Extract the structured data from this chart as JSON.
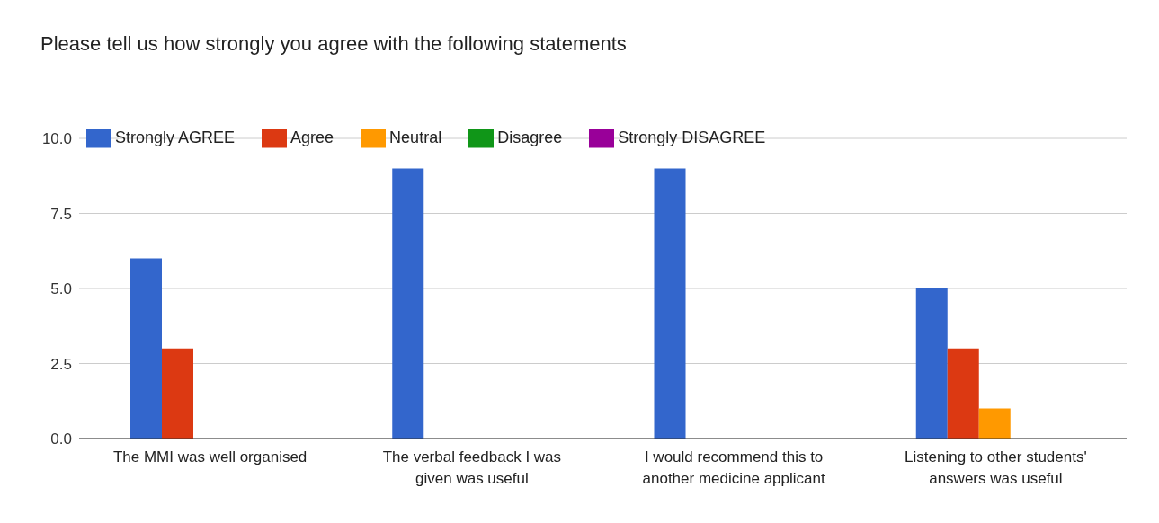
{
  "chart_data": {
    "type": "bar",
    "title": "Please tell us how strongly you agree with  the following statements",
    "categories": [
      "The MMI was well organised",
      "The verbal feedback I was given was useful",
      "I would recommend this to another medicine applicant",
      "Listening to other students' answers was useful"
    ],
    "series": [
      {
        "name": "Strongly AGREE",
        "color": "#3366cc",
        "values": [
          6,
          9,
          9,
          5
        ]
      },
      {
        "name": "Agree",
        "color": "#dc3912",
        "values": [
          3,
          0,
          0,
          3
        ]
      },
      {
        "name": "Neutral",
        "color": "#ff9900",
        "values": [
          0,
          0,
          0,
          1
        ]
      },
      {
        "name": "Disagree",
        "color": "#109618",
        "values": [
          0,
          0,
          0,
          0
        ]
      },
      {
        "name": "Strongly DISAGREE",
        "color": "#990099",
        "values": [
          0,
          0,
          0,
          0
        ]
      }
    ],
    "ylim": [
      0,
      10
    ],
    "yticks": [
      {
        "value": 0,
        "label": "0.0"
      },
      {
        "value": 2.5,
        "label": "2.5"
      },
      {
        "value": 5,
        "label": "5.0"
      },
      {
        "value": 7.5,
        "label": "7.5"
      },
      {
        "value": 10,
        "label": "10.0"
      }
    ],
    "grid": "y",
    "legend": "top left"
  }
}
